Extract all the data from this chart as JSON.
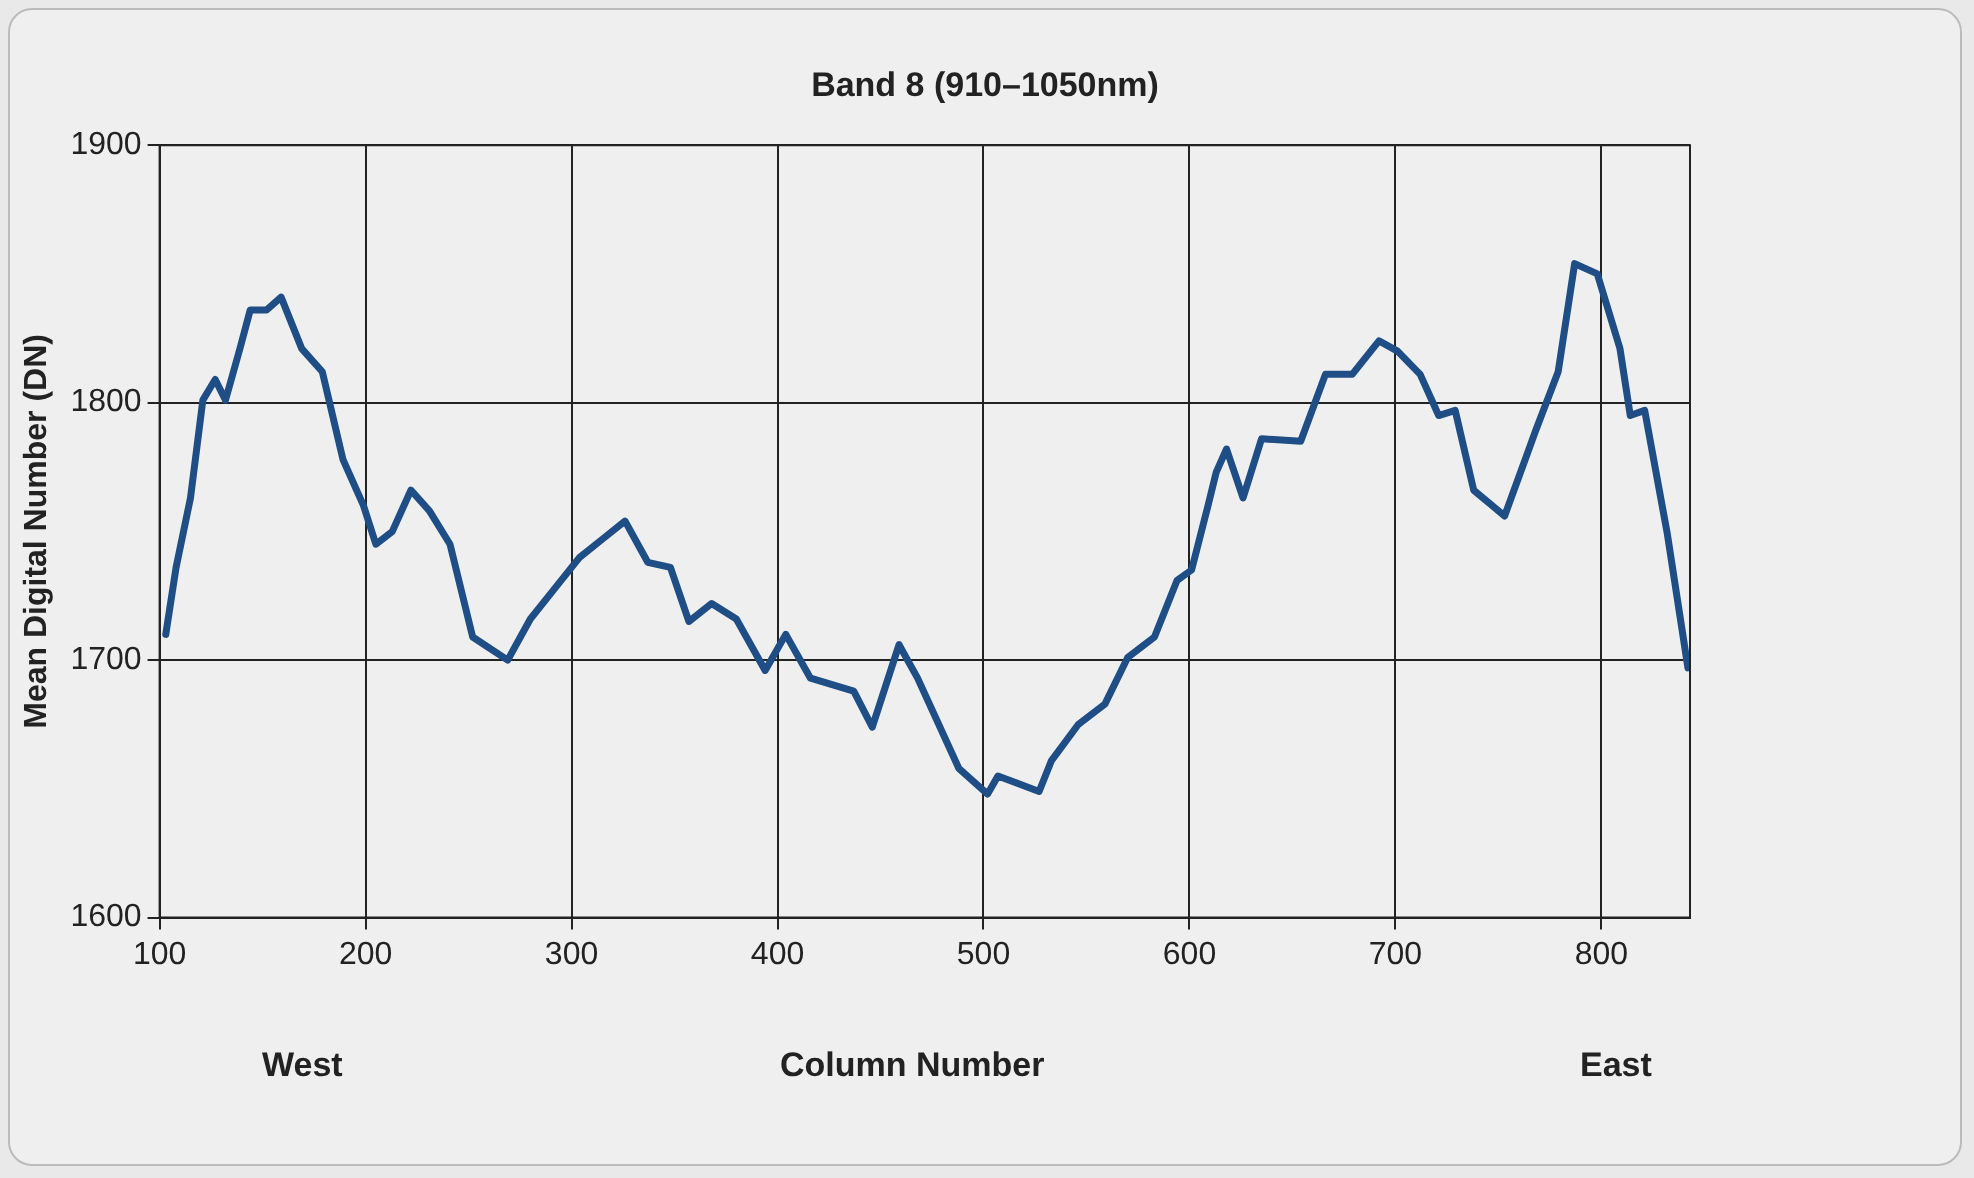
{
  "chart_data": {
    "type": "line",
    "title": "Band 8 (910–1050nm)",
    "xlabel": "Column Number",
    "ylabel": "Mean Digital Number (DN)",
    "annotations": [
      "West",
      "East"
    ],
    "xlim": [
      100,
      843
    ],
    "xticks": [
      100,
      200,
      300,
      400,
      500,
      600,
      700,
      800
    ],
    "ylim": [
      1600,
      1900
    ],
    "yticks": [
      1600,
      1700,
      1800,
      1900
    ],
    "grid": true,
    "legend": false,
    "marker": "none",
    "line_style": "solid",
    "series": [
      {
        "color": "#1f4e86",
        "x": [
          103,
          108,
          115,
          121,
          127,
          132,
          139,
          144,
          152,
          159,
          169,
          179,
          189,
          199,
          205,
          213,
          222,
          231,
          241,
          252,
          269,
          280,
          291,
          304,
          315,
          326,
          337,
          348,
          357,
          368,
          380,
          394,
          404,
          416,
          437,
          446,
          459,
          468,
          488,
          502,
          507,
          527,
          533,
          546,
          559,
          570,
          583,
          594,
          601,
          609,
          613,
          618,
          626,
          635,
          654,
          666,
          679,
          692,
          701,
          712,
          721,
          729,
          738,
          753,
          768,
          779,
          787,
          798,
          809,
          814,
          821,
          832,
          842
        ],
        "values": [
          1710,
          1736,
          1763,
          1801,
          1809,
          1801,
          1821,
          1836,
          1836,
          1841,
          1821,
          1812,
          1778,
          1760,
          1745,
          1750,
          1766,
          1758,
          1745,
          1709,
          1700,
          1716,
          1727,
          1740,
          1747,
          1754,
          1738,
          1736,
          1715,
          1722,
          1716,
          1696,
          1710,
          1693,
          1688,
          1674,
          1706,
          1693,
          1658,
          1648,
          1655,
          1649,
          1661,
          1675,
          1683,
          1701,
          1709,
          1731,
          1735,
          1760,
          1773,
          1782,
          1763,
          1786,
          1785,
          1811,
          1811,
          1824,
          1820,
          1811,
          1795,
          1797,
          1766,
          1756,
          1789,
          1812,
          1854,
          1850,
          1821,
          1795,
          1797,
          1749,
          1697
        ]
      }
    ]
  }
}
